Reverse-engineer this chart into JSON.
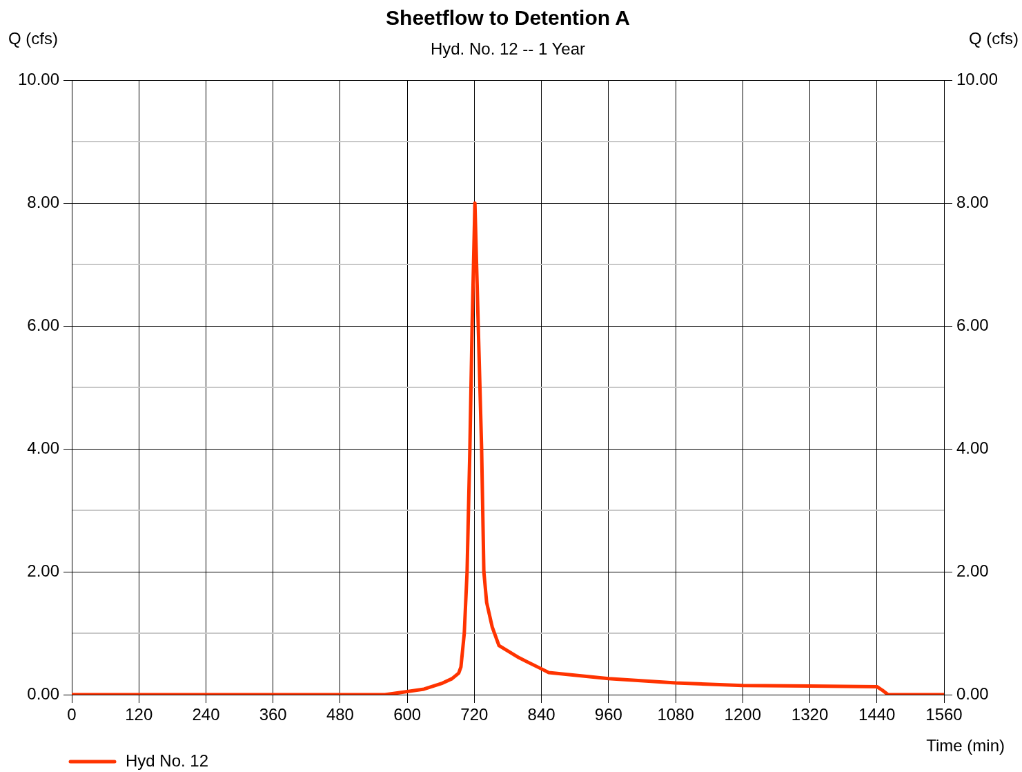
{
  "chart_data": {
    "type": "line",
    "title": "Sheetflow to Detention A",
    "subtitle": "Hyd. No. 12 -- 1 Year",
    "ylabel": "Q (cfs)",
    "y2label": "Q (cfs)",
    "xlabel": "Time (min)",
    "xlim": [
      0,
      1560
    ],
    "xticks": [
      0,
      120,
      240,
      360,
      480,
      600,
      720,
      840,
      960,
      1080,
      1200,
      1320,
      1440,
      1560
    ],
    "ylim": [
      0,
      10
    ],
    "yticks": [
      {
        "value": 0,
        "label": "0.00"
      },
      {
        "value": 1,
        "label": null
      },
      {
        "value": 2,
        "label": "2.00"
      },
      {
        "value": 3,
        "label": null
      },
      {
        "value": 4,
        "label": "4.00"
      },
      {
        "value": 5,
        "label": null
      },
      {
        "value": 6,
        "label": "6.00"
      },
      {
        "value": 7,
        "label": null
      },
      {
        "value": 8,
        "label": "8.00"
      },
      {
        "value": 9,
        "label": null
      },
      {
        "value": 10,
        "label": "10.00"
      }
    ],
    "y2lim": [
      0,
      10
    ],
    "y2ticks": [
      {
        "value": 0,
        "label": "0.00"
      },
      {
        "value": 2,
        "label": "2.00"
      },
      {
        "value": 4,
        "label": "4.00"
      },
      {
        "value": 6,
        "label": "6.00"
      },
      {
        "value": 8,
        "label": "8.00"
      },
      {
        "value": 10,
        "label": "10.00"
      }
    ],
    "grid": true,
    "legend": "bottom left",
    "marker": "none",
    "line_style": "solid",
    "series": [
      {
        "name": "Hyd No. 12",
        "color": "#ff3300",
        "x": [
          0,
          560,
          600,
          630,
          661,
          680,
          692,
          696,
          702,
          707,
          712,
          716,
          721,
          727,
          733,
          737,
          742,
          752,
          764,
          800,
          840,
          853,
          960,
          1080,
          1200,
          1320,
          1440,
          1450,
          1460,
          1560
        ],
        "values": [
          0,
          0,
          0.05,
          0.09,
          0.18,
          0.26,
          0.35,
          0.45,
          1.0,
          2.0,
          4.0,
          6.0,
          8.0,
          6.0,
          4.0,
          2.0,
          1.5,
          1.1,
          0.8,
          0.6,
          0.42,
          0.36,
          0.26,
          0.19,
          0.15,
          0.14,
          0.13,
          0.07,
          0,
          0
        ]
      }
    ]
  }
}
